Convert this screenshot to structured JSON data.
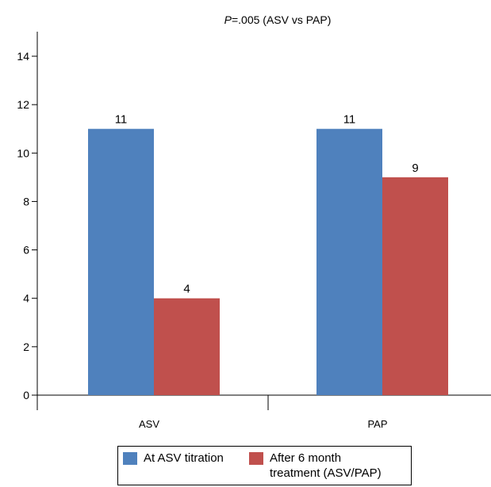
{
  "chart_data": {
    "type": "bar",
    "title_italic": "P",
    "title_rest": "=.005 (ASV vs PAP)",
    "xlabel": "",
    "ylabel": "",
    "categories": [
      "ASV",
      "PAP"
    ],
    "series": [
      {
        "name": "At ASV titration",
        "values": [
          11,
          11
        ],
        "color": "#4F81BD"
      },
      {
        "name": "After 6 month treatment (ASV/PAP)",
        "values": [
          4,
          9
        ],
        "color": "#C0504D"
      }
    ],
    "data_labels": [
      [
        "11",
        "11"
      ],
      [
        "4",
        "9"
      ]
    ],
    "ylim": [
      0,
      14
    ],
    "yticks": [
      0,
      2,
      4,
      6,
      8,
      10,
      12,
      14
    ],
    "grid": false,
    "legend_position": "bottom"
  },
  "legend": {
    "items": [
      {
        "label_line1": "At ASV titration",
        "label_line2": ""
      },
      {
        "label_line1": "After 6 month",
        "label_line2": "treatment (ASV/PAP)"
      }
    ]
  }
}
